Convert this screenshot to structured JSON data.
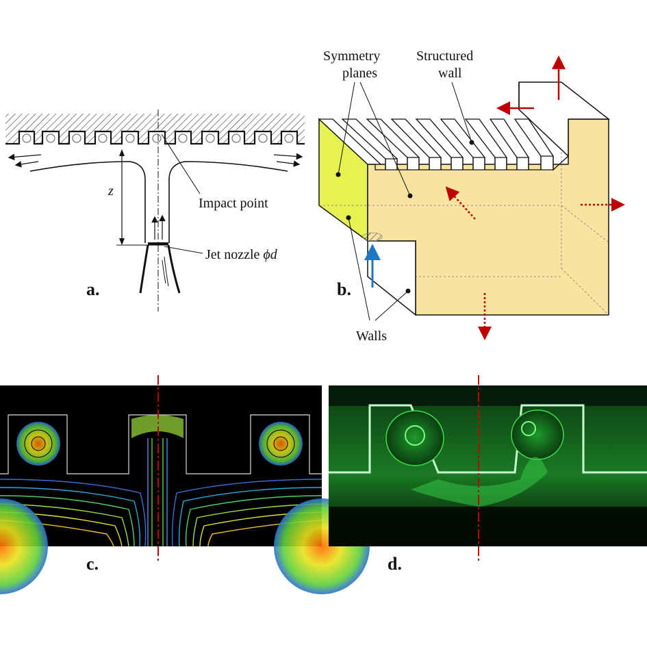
{
  "panels": {
    "a": {
      "letter": "a.",
      "z_label": "z",
      "impact_label": "Impact point",
      "nozzle_label": "Jet nozzle ",
      "nozzle_symbol": "ϕd"
    },
    "b": {
      "letter": "b.",
      "symmetry_label_1": "Symmetry",
      "symmetry_label_2": "planes",
      "structured_label_1": "Structured",
      "structured_label_2": "wall",
      "walls_label": "Walls"
    },
    "c": {
      "letter": "c."
    },
    "d": {
      "letter": "d."
    }
  },
  "colors": {
    "hatch": "#333333",
    "solid_face": "#f8e3a1",
    "symmetry_face": "#e6f152",
    "outflow_arrow": "#c00000",
    "inflow_arrow": "#1f77c4",
    "axis_dashdot": "#c00000",
    "cfd_background": "#000000",
    "piv_background": "#06200a",
    "piv_green": "#2fd43f"
  }
}
